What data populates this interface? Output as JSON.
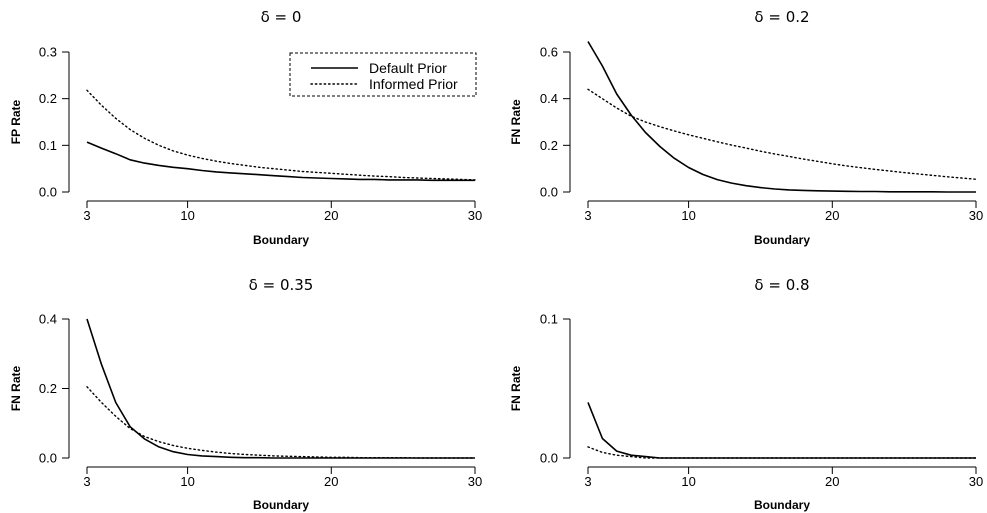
{
  "chart_data": [
    {
      "type": "line",
      "title": "δ = 0",
      "xlabel": "Boundary",
      "ylabel": "FP Rate",
      "xlim": [
        3,
        30
      ],
      "ylim": [
        0,
        0.3
      ],
      "xticks": [
        3,
        10,
        20,
        30
      ],
      "yticks": [
        0.0,
        0.1,
        0.2,
        0.3
      ],
      "ytick_labels": [
        "0.0",
        "0.1",
        "0.2",
        "0.3"
      ],
      "legend": {
        "position": "top-right",
        "entries": [
          "Default Prior",
          "Informed Prior"
        ]
      },
      "x": [
        3,
        4,
        5,
        6,
        7,
        8,
        9,
        10,
        11,
        12,
        13,
        14,
        15,
        16,
        17,
        18,
        19,
        20,
        21,
        22,
        23,
        24,
        25,
        26,
        27,
        28,
        29,
        30
      ],
      "series": [
        {
          "name": "Default Prior",
          "style": "solid",
          "values": [
            0.107,
            0.094,
            0.082,
            0.069,
            0.062,
            0.057,
            0.053,
            0.05,
            0.046,
            0.043,
            0.041,
            0.039,
            0.037,
            0.035,
            0.033,
            0.031,
            0.03,
            0.029,
            0.028,
            0.027,
            0.027,
            0.026,
            0.026,
            0.026,
            0.025,
            0.025,
            0.025,
            0.025
          ]
        },
        {
          "name": "Informed Prior",
          "style": "dotted",
          "values": [
            0.218,
            0.186,
            0.158,
            0.134,
            0.115,
            0.1,
            0.088,
            0.079,
            0.072,
            0.066,
            0.061,
            0.057,
            0.053,
            0.05,
            0.047,
            0.044,
            0.042,
            0.04,
            0.038,
            0.036,
            0.034,
            0.033,
            0.031,
            0.03,
            0.029,
            0.028,
            0.027,
            0.026
          ]
        }
      ]
    },
    {
      "type": "line",
      "title": "δ = 0.2",
      "xlabel": "Boundary",
      "ylabel": "FN Rate",
      "xlim": [
        3,
        30
      ],
      "ylim": [
        0,
        0.6
      ],
      "xticks": [
        3,
        10,
        20,
        30
      ],
      "yticks": [
        0.0,
        0.2,
        0.4,
        0.6
      ],
      "ytick_labels": [
        "0.0",
        "0.2",
        "0.4",
        "0.6"
      ],
      "x": [
        3,
        4,
        5,
        6,
        7,
        8,
        9,
        10,
        11,
        12,
        13,
        14,
        15,
        16,
        17,
        18,
        19,
        20,
        21,
        22,
        23,
        24,
        25,
        26,
        27,
        28,
        29,
        30
      ],
      "series": [
        {
          "name": "Default Prior",
          "style": "solid",
          "values": [
            0.645,
            0.54,
            0.42,
            0.33,
            0.255,
            0.195,
            0.145,
            0.105,
            0.075,
            0.053,
            0.038,
            0.027,
            0.019,
            0.013,
            0.009,
            0.007,
            0.005,
            0.004,
            0.003,
            0.002,
            0.002,
            0.001,
            0.001,
            0.001,
            0.001,
            0.0,
            0.0,
            0.0
          ]
        },
        {
          "name": "Informed Prior",
          "style": "dotted",
          "values": [
            0.44,
            0.4,
            0.36,
            0.325,
            0.3,
            0.28,
            0.262,
            0.245,
            0.23,
            0.215,
            0.201,
            0.188,
            0.175,
            0.163,
            0.152,
            0.141,
            0.131,
            0.121,
            0.112,
            0.104,
            0.097,
            0.09,
            0.083,
            0.077,
            0.071,
            0.065,
            0.06,
            0.055
          ]
        }
      ]
    },
    {
      "type": "line",
      "title": "δ = 0.35",
      "xlabel": "Boundary",
      "ylabel": "FN Rate",
      "xlim": [
        3,
        30
      ],
      "ylim": [
        0,
        0.4
      ],
      "xticks": [
        3,
        10,
        20,
        30
      ],
      "yticks": [
        0.0,
        0.2,
        0.4
      ],
      "ytick_labels": [
        "0.0",
        "0.2",
        "0.4"
      ],
      "x": [
        3,
        4,
        5,
        6,
        7,
        8,
        9,
        10,
        11,
        12,
        13,
        14,
        15,
        16,
        17,
        18,
        19,
        20,
        21,
        22,
        23,
        24,
        25,
        26,
        27,
        28,
        29,
        30
      ],
      "series": [
        {
          "name": "Default Prior",
          "style": "solid",
          "values": [
            0.4,
            0.27,
            0.16,
            0.09,
            0.055,
            0.032,
            0.018,
            0.01,
            0.006,
            0.004,
            0.002,
            0.001,
            0.001,
            0.0,
            0.0,
            0.0,
            0.0,
            0.0,
            0.0,
            0.0,
            0.0,
            0.0,
            0.0,
            0.0,
            0.0,
            0.0,
            0.0,
            0.0
          ]
        },
        {
          "name": "Informed Prior",
          "style": "dotted",
          "values": [
            0.205,
            0.16,
            0.12,
            0.085,
            0.062,
            0.047,
            0.036,
            0.028,
            0.022,
            0.017,
            0.013,
            0.01,
            0.008,
            0.006,
            0.005,
            0.004,
            0.003,
            0.002,
            0.002,
            0.001,
            0.001,
            0.001,
            0.001,
            0.0,
            0.0,
            0.0,
            0.0,
            0.0
          ]
        }
      ]
    },
    {
      "type": "line",
      "title": "δ = 0.8",
      "xlabel": "Boundary",
      "ylabel": "FN Rate",
      "xlim": [
        3,
        30
      ],
      "ylim": [
        0,
        0.1
      ],
      "xticks": [
        3,
        10,
        20,
        30
      ],
      "yticks": [
        0.0,
        0.1
      ],
      "ytick_labels": [
        "0.0",
        "0.1"
      ],
      "x": [
        3,
        4,
        5,
        6,
        7,
        8,
        9,
        10,
        11,
        12,
        13,
        14,
        15,
        16,
        17,
        18,
        19,
        20,
        21,
        22,
        23,
        24,
        25,
        26,
        27,
        28,
        29,
        30
      ],
      "series": [
        {
          "name": "Default Prior",
          "style": "solid",
          "values": [
            0.04,
            0.014,
            0.005,
            0.002,
            0.001,
            0.0,
            0.0,
            0.0,
            0.0,
            0.0,
            0.0,
            0.0,
            0.0,
            0.0,
            0.0,
            0.0,
            0.0,
            0.0,
            0.0,
            0.0,
            0.0,
            0.0,
            0.0,
            0.0,
            0.0,
            0.0,
            0.0,
            0.0
          ]
        },
        {
          "name": "Informed Prior",
          "style": "dotted",
          "values": [
            0.008,
            0.004,
            0.002,
            0.001,
            0.0,
            0.0,
            0.0,
            0.0,
            0.0,
            0.0,
            0.0,
            0.0,
            0.0,
            0.0,
            0.0,
            0.0,
            0.0,
            0.0,
            0.0,
            0.0,
            0.0,
            0.0,
            0.0,
            0.0,
            0.0,
            0.0,
            0.0,
            0.0
          ]
        }
      ]
    }
  ]
}
